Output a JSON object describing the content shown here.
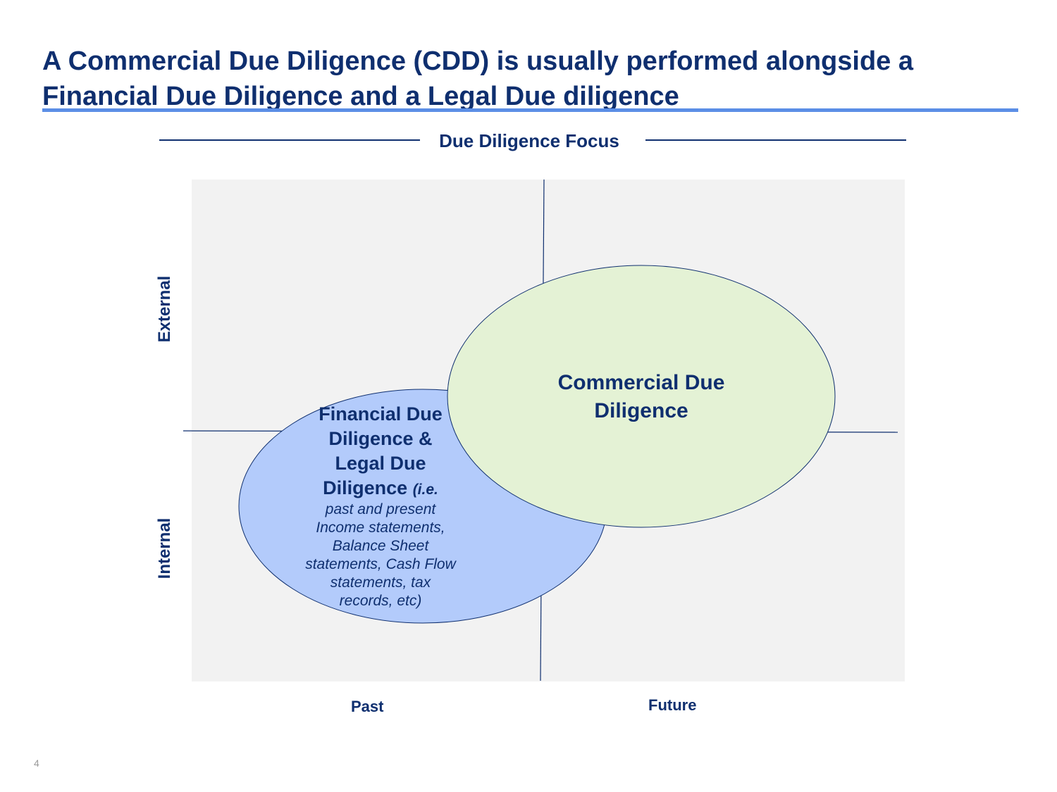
{
  "title": {
    "line1": "A Commercial Due Diligence (CDD) is usually performed alongside a",
    "line2": "Financial Due Diligence and a Legal Due diligence"
  },
  "diagram": {
    "header": "Due Diligence Focus",
    "y_axis": {
      "top": "External",
      "bottom": "Internal"
    },
    "x_axis": {
      "left": "Past",
      "right": "Future"
    },
    "financial_ellipse": {
      "line1": "Financial Due",
      "line2": "Diligence &",
      "line3": "Legal Due",
      "line4": "Diligence",
      "note_start": "(i.e.",
      "note_rest": "past and present Income statements, Balance Sheet statements, Cash Flow statements, tax records, etc)"
    },
    "commercial_ellipse": {
      "line1": "Commercial Due",
      "line2": "Diligence"
    },
    "colors": {
      "navy": "#0f2f6f",
      "panel": "#f2f2f2",
      "financial_fill": "#b3cbfb",
      "commercial_fill": "#e4f2d5",
      "title_rule": "#5b8ee6"
    }
  },
  "page_number": "4"
}
